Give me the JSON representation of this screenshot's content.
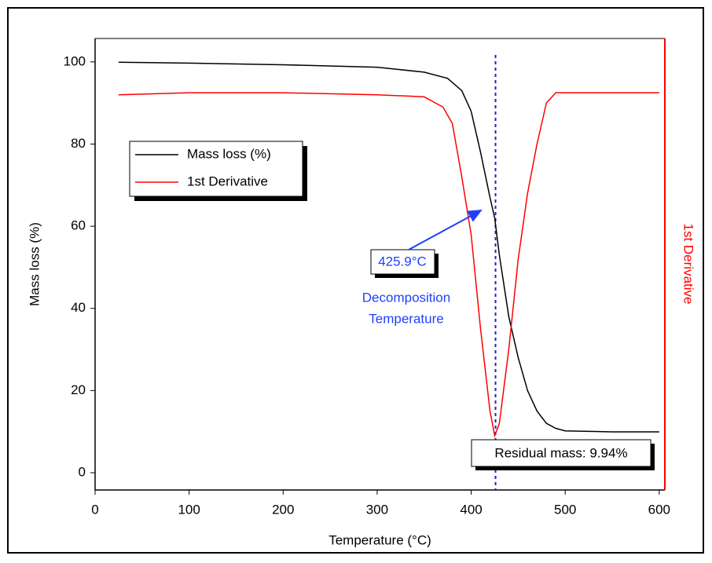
{
  "chart_data": {
    "type": "line",
    "xlabel": "Temperature (°C)",
    "ylabel": "Mass loss (%)",
    "y2label": "1st Derivative",
    "xlim": [
      0,
      606
    ],
    "ylim": [
      -4.2,
      105.7
    ],
    "y2lim": [
      -4.2,
      105.7
    ],
    "xticks": [
      0,
      100,
      200,
      300,
      400,
      500,
      600
    ],
    "yticks": [
      0,
      20,
      40,
      60,
      80,
      100
    ],
    "legend": "upper left",
    "series": [
      {
        "name": "Mass loss (%)",
        "color": "#000000",
        "x": [
          25,
          100,
          200,
          300,
          350,
          375,
          390,
          400,
          410,
          420,
          425,
          430,
          440,
          450,
          460,
          470,
          480,
          490,
          500,
          550,
          600
        ],
        "values": [
          99.9,
          99.7,
          99.3,
          98.7,
          97.5,
          96,
          93,
          88,
          78,
          67,
          62,
          53,
          38,
          28,
          20,
          15,
          12,
          10.8,
          10.2,
          9.95,
          9.94
        ]
      },
      {
        "name": "1st Derivative",
        "color": "#ff0000",
        "axis": "y2",
        "x": [
          25,
          100,
          200,
          300,
          350,
          370,
          380,
          390,
          400,
          410,
          420,
          425,
          430,
          440,
          450,
          460,
          470,
          480,
          490,
          500,
          600
        ],
        "values": [
          92,
          92.5,
          92.5,
          92,
          91.5,
          89,
          85,
          72,
          58,
          35,
          15,
          9,
          12,
          30,
          52,
          68,
          80,
          90,
          92.5,
          92.5,
          92.5
        ]
      }
    ],
    "annotations": {
      "decomposition": {
        "value": 425.9,
        "label": "425.9°C"
      },
      "decomposition_text": [
        "Decomposition",
        "Temperature"
      ],
      "residual": {
        "value": 9.94,
        "label": "Residual mass: 9.94%"
      }
    }
  }
}
